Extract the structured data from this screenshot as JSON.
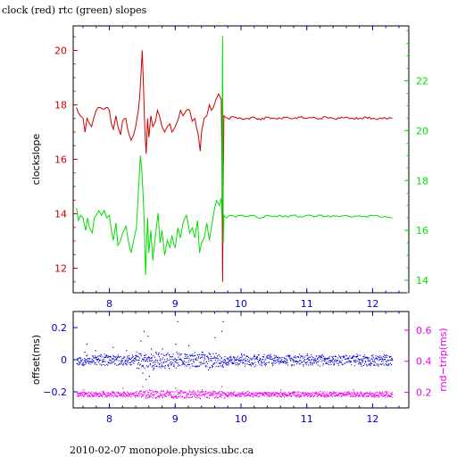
{
  "title": "clock (red) rtc (green) slopes",
  "footer": "2010-02-07 monopole.physics.ubc.ca",
  "colors": {
    "clock": "#cc0000",
    "rtc": "#00dd00",
    "offset": "#0000cc",
    "rndtrip": "#ee00ee",
    "frame": "#000000"
  },
  "chart_data": [
    {
      "type": "line",
      "ylabel": "clockslope",
      "y2label": "",
      "xlim": [
        7.45,
        12.55
      ],
      "xticks": [
        8,
        9,
        10,
        11,
        12
      ],
      "ylim_left": [
        11.1,
        20.9
      ],
      "yticks_left": [
        12,
        14,
        16,
        18,
        20
      ],
      "ylim_right": [
        13.5,
        24.2
      ],
      "yticks_right": [
        14,
        16,
        18,
        20,
        22
      ],
      "grid": false,
      "series": [
        {
          "name": "clock",
          "axis": "left",
          "points": [
            [
              7.5,
              17.9
            ],
            [
              7.53,
              17.7
            ],
            [
              7.56,
              17.6
            ],
            [
              7.6,
              17.5
            ],
            [
              7.63,
              17.0
            ],
            [
              7.66,
              17.5
            ],
            [
              7.7,
              17.3
            ],
            [
              7.73,
              17.2
            ],
            [
              7.76,
              17.5
            ],
            [
              7.8,
              17.8
            ],
            [
              7.83,
              17.9
            ],
            [
              7.86,
              17.9
            ],
            [
              7.9,
              17.85
            ],
            [
              7.95,
              17.9
            ],
            [
              8.0,
              17.8
            ],
            [
              8.03,
              17.3
            ],
            [
              8.06,
              17.1
            ],
            [
              8.1,
              17.6
            ],
            [
              8.13,
              17.2
            ],
            [
              8.17,
              16.9
            ],
            [
              8.2,
              17.4
            ],
            [
              8.25,
              17.5
            ],
            [
              8.3,
              16.9
            ],
            [
              8.33,
              16.7
            ],
            [
              8.37,
              16.9
            ],
            [
              8.4,
              17.2
            ],
            [
              8.44,
              17.8
            ],
            [
              8.46,
              18.3
            ],
            [
              8.48,
              19.1
            ],
            [
              8.5,
              20.0
            ],
            [
              8.52,
              18.5
            ],
            [
              8.54,
              17.0
            ],
            [
              8.56,
              16.2
            ],
            [
              8.58,
              17.5
            ],
            [
              8.6,
              16.8
            ],
            [
              8.63,
              17.6
            ],
            [
              8.66,
              17.2
            ],
            [
              8.7,
              17.4
            ],
            [
              8.73,
              17.8
            ],
            [
              8.76,
              17.6
            ],
            [
              8.8,
              17.2
            ],
            [
              8.84,
              17.0
            ],
            [
              8.88,
              17.2
            ],
            [
              8.92,
              17.3
            ],
            [
              8.95,
              17.0
            ],
            [
              9.0,
              17.2
            ],
            [
              9.05,
              17.5
            ],
            [
              9.08,
              17.8
            ],
            [
              9.12,
              17.6
            ],
            [
              9.17,
              17.8
            ],
            [
              9.22,
              17.8
            ],
            [
              9.26,
              17.4
            ],
            [
              9.3,
              17.5
            ],
            [
              9.35,
              16.9
            ],
            [
              9.38,
              16.3
            ],
            [
              9.4,
              17.0
            ],
            [
              9.44,
              17.5
            ],
            [
              9.48,
              17.6
            ],
            [
              9.52,
              18.0
            ],
            [
              9.55,
              17.8
            ],
            [
              9.58,
              17.9
            ],
            [
              9.62,
              18.2
            ],
            [
              9.66,
              18.4
            ],
            [
              9.7,
              18.2
            ],
            [
              9.71,
              16.0
            ],
            [
              9.72,
              11.5
            ],
            [
              9.73,
              15.0
            ],
            [
              9.74,
              17.6
            ],
            [
              9.76,
              17.55
            ],
            [
              9.8,
              17.5
            ],
            [
              9.9,
              17.55
            ],
            [
              10.0,
              17.5
            ],
            [
              10.1,
              17.5
            ],
            [
              10.2,
              17.55
            ],
            [
              10.3,
              17.45
            ],
            [
              10.4,
              17.55
            ],
            [
              10.5,
              17.5
            ],
            [
              10.6,
              17.5
            ],
            [
              10.7,
              17.55
            ],
            [
              10.8,
              17.5
            ],
            [
              10.9,
              17.55
            ],
            [
              11.0,
              17.5
            ],
            [
              11.1,
              17.55
            ],
            [
              11.2,
              17.5
            ],
            [
              11.3,
              17.55
            ],
            [
              11.4,
              17.5
            ],
            [
              11.5,
              17.5
            ],
            [
              11.6,
              17.55
            ],
            [
              11.7,
              17.5
            ],
            [
              11.8,
              17.5
            ],
            [
              11.9,
              17.55
            ],
            [
              12.0,
              17.5
            ],
            [
              12.1,
              17.5
            ],
            [
              12.2,
              17.5
            ],
            [
              12.3,
              17.5
            ]
          ]
        },
        {
          "name": "rtc",
          "axis": "right",
          "points": [
            [
              7.5,
              16.9
            ],
            [
              7.53,
              16.4
            ],
            [
              7.56,
              16.6
            ],
            [
              7.6,
              16.5
            ],
            [
              7.64,
              16.0
            ],
            [
              7.67,
              16.5
            ],
            [
              7.7,
              16.1
            ],
            [
              7.74,
              15.9
            ],
            [
              7.77,
              16.5
            ],
            [
              7.8,
              16.6
            ],
            [
              7.84,
              16.8
            ],
            [
              7.88,
              16.6
            ],
            [
              7.92,
              16.8
            ],
            [
              7.96,
              16.5
            ],
            [
              8.0,
              16.6
            ],
            [
              8.03,
              16.0
            ],
            [
              8.06,
              15.6
            ],
            [
              8.1,
              16.3
            ],
            [
              8.13,
              15.4
            ],
            [
              8.17,
              15.6
            ],
            [
              8.2,
              15.9
            ],
            [
              8.25,
              16.2
            ],
            [
              8.3,
              15.4
            ],
            [
              8.33,
              15.1
            ],
            [
              8.37,
              15.6
            ],
            [
              8.41,
              16.1
            ],
            [
              8.44,
              17.5
            ],
            [
              8.47,
              19.0
            ],
            [
              8.49,
              18.5
            ],
            [
              8.51,
              17.6
            ],
            [
              8.53,
              16.3
            ],
            [
              8.55,
              14.2
            ],
            [
              8.58,
              16.5
            ],
            [
              8.6,
              15.1
            ],
            [
              8.63,
              16.0
            ],
            [
              8.66,
              14.8
            ],
            [
              8.7,
              15.8
            ],
            [
              8.74,
              16.7
            ],
            [
              8.77,
              15.5
            ],
            [
              8.8,
              16.0
            ],
            [
              8.84,
              15.0
            ],
            [
              8.88,
              15.6
            ],
            [
              8.92,
              15.3
            ],
            [
              8.95,
              15.8
            ],
            [
              9.0,
              15.3
            ],
            [
              9.04,
              16.1
            ],
            [
              9.08,
              15.7
            ],
            [
              9.12,
              16.3
            ],
            [
              9.17,
              16.6
            ],
            [
              9.22,
              15.9
            ],
            [
              9.26,
              16.1
            ],
            [
              9.3,
              15.7
            ],
            [
              9.34,
              16.4
            ],
            [
              9.37,
              15.1
            ],
            [
              9.4,
              15.5
            ],
            [
              9.44,
              15.7
            ],
            [
              9.48,
              16.3
            ],
            [
              9.52,
              15.6
            ],
            [
              9.56,
              16.3
            ],
            [
              9.6,
              16.9
            ],
            [
              9.63,
              17.2
            ],
            [
              9.67,
              17.0
            ],
            [
              9.7,
              17.3
            ],
            [
              9.71,
              16.5
            ],
            [
              9.72,
              23.8
            ],
            [
              9.73,
              15.5
            ],
            [
              9.74,
              16.6
            ],
            [
              9.78,
              16.5
            ],
            [
              9.85,
              16.6
            ],
            [
              9.9,
              16.55
            ],
            [
              10.0,
              16.6
            ],
            [
              10.1,
              16.55
            ],
            [
              10.2,
              16.6
            ],
            [
              10.3,
              16.5
            ],
            [
              10.4,
              16.6
            ],
            [
              10.5,
              16.55
            ],
            [
              10.6,
              16.6
            ],
            [
              10.7,
              16.55
            ],
            [
              10.8,
              16.6
            ],
            [
              10.9,
              16.55
            ],
            [
              11.0,
              16.6
            ],
            [
              11.1,
              16.55
            ],
            [
              11.2,
              16.6
            ],
            [
              11.3,
              16.55
            ],
            [
              11.4,
              16.6
            ],
            [
              11.5,
              16.55
            ],
            [
              11.6,
              16.6
            ],
            [
              11.7,
              16.55
            ],
            [
              11.8,
              16.6
            ],
            [
              11.9,
              16.55
            ],
            [
              12.0,
              16.6
            ],
            [
              12.1,
              16.55
            ],
            [
              12.2,
              16.55
            ],
            [
              12.3,
              16.5
            ]
          ]
        }
      ]
    },
    {
      "type": "scatter",
      "ylabel": "offset(ms)",
      "y2label": "rnd−trip(ms)",
      "xlim": [
        7.45,
        12.55
      ],
      "xticks": [
        8,
        9,
        10,
        11,
        12
      ],
      "ylim_left": [
        -0.3,
        0.3
      ],
      "yticks_left": [
        -0.2,
        0,
        0.2
      ],
      "ylim_right": [
        0.1,
        0.72
      ],
      "yticks_right": [
        0.2,
        0.4,
        0.6
      ],
      "grid": false,
      "series": [
        {
          "name": "offset",
          "axis": "left",
          "baseline": 0.0,
          "spread": 0.03,
          "points": [
            [
              7.62,
              0.05
            ],
            [
              7.65,
              0.1
            ],
            [
              7.78,
              0.06
            ],
            [
              8.05,
              0.08
            ],
            [
              8.25,
              0.06
            ],
            [
              8.4,
              0.03
            ],
            [
              8.44,
              -0.05
            ],
            [
              8.47,
              0.12
            ],
            [
              8.5,
              -0.08
            ],
            [
              8.52,
              0.18
            ],
            [
              8.55,
              -0.12
            ],
            [
              8.58,
              0.15
            ],
            [
              8.6,
              -0.1
            ],
            [
              8.63,
              0.07
            ],
            [
              8.66,
              -0.06
            ],
            [
              8.7,
              0.05
            ],
            [
              8.75,
              -0.04
            ],
            [
              8.8,
              0.07
            ],
            [
              8.9,
              -0.05
            ],
            [
              9.0,
              0.1
            ],
            [
              9.03,
              0.24
            ],
            [
              9.15,
              -0.03
            ],
            [
              9.2,
              0.09
            ],
            [
              9.3,
              -0.04
            ],
            [
              9.4,
              0.05
            ],
            [
              9.5,
              -0.06
            ],
            [
              9.6,
              0.14
            ],
            [
              9.7,
              0.18
            ],
            [
              9.72,
              0.24
            ],
            [
              9.8,
              -0.03
            ],
            [
              10.0,
              0.04
            ],
            [
              10.2,
              -0.04
            ],
            [
              10.5,
              0.03
            ],
            [
              10.8,
              -0.03
            ],
            [
              11.0,
              0.04
            ],
            [
              11.4,
              -0.03
            ],
            [
              11.8,
              0.03
            ],
            [
              12.2,
              -0.03
            ]
          ]
        },
        {
          "name": "rnd-trip",
          "axis": "right",
          "baseline": 0.19,
          "spread": 0.015,
          "points": [
            [
              7.6,
              0.22
            ],
            [
              7.9,
              0.21
            ],
            [
              8.2,
              0.23
            ],
            [
              8.5,
              0.24
            ],
            [
              8.6,
              0.22
            ],
            [
              9.0,
              0.23
            ],
            [
              9.4,
              0.22
            ],
            [
              9.7,
              0.24
            ],
            [
              10.1,
              0.21
            ],
            [
              10.6,
              0.22
            ],
            [
              11.2,
              0.21
            ],
            [
              11.7,
              0.22
            ],
            [
              12.2,
              0.21
            ]
          ]
        }
      ]
    }
  ]
}
